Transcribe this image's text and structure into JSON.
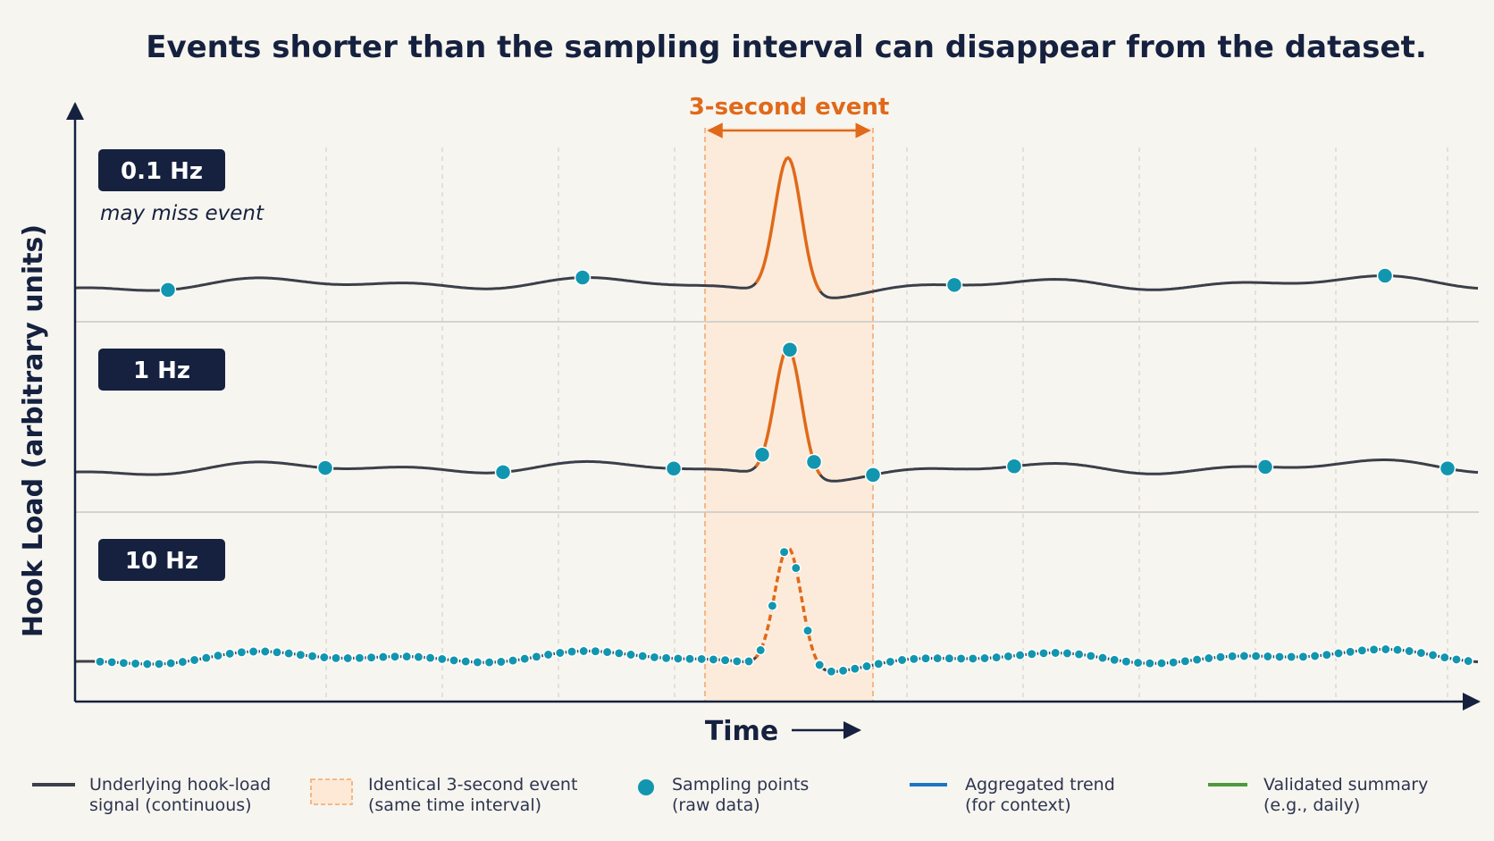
{
  "title": "Events shorter than the sampling interval can disappear from the dataset.",
  "axes": {
    "y_label": "Hook Load (arbitrary units)",
    "x_label": "Time"
  },
  "event": {
    "label": "3-second event"
  },
  "panels": [
    {
      "rate_label": "0.1 Hz",
      "note": "may miss event"
    },
    {
      "rate_label": "1 Hz",
      "note": ""
    },
    {
      "rate_label": "10 Hz",
      "note": ""
    }
  ],
  "legend": [
    {
      "line1": "Underlying hook-load",
      "line2": "signal (continuous)",
      "swatch": "line",
      "color": "#3b3f4a"
    },
    {
      "line1": "Identical 3-second event",
      "line2": "(same time interval)",
      "swatch": "dashed-box",
      "color": "#f0a56c"
    },
    {
      "line1": "Sampling points",
      "line2": "(raw data)",
      "swatch": "dot",
      "color": "#1296b0"
    },
    {
      "line1": "Aggregated trend",
      "line2": "(for context)",
      "swatch": "line",
      "color": "#1e74c4"
    },
    {
      "line1": "Validated summary",
      "line2": "(e.g., daily)",
      "swatch": "line",
      "color": "#4e9a3d"
    }
  ],
  "colors": {
    "signal": "#3b3f4a",
    "event_peak": "#e0691a",
    "event_band": "#fde9d6",
    "sample_dot": "#1296b0",
    "badge": "#15213f"
  },
  "icons": [
    "y-axis-arrow-icon",
    "x-axis-arrow-icon",
    "time-arrow-icon",
    "double-headed-arrow-icon"
  ]
}
